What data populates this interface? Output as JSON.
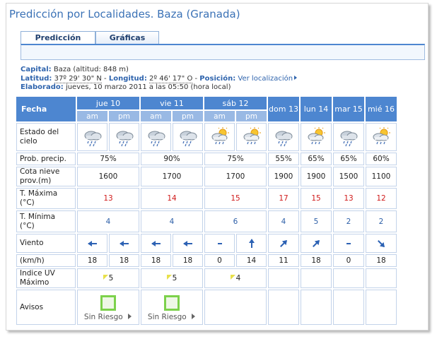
{
  "header": {
    "title": "Predicción por Localidades. Baza (Granada)"
  },
  "tabs": [
    "Predicción",
    "Gráficas"
  ],
  "info": {
    "capital_label": "Capital:",
    "capital": "Baza (altitud: 848 m)",
    "latitud_label": "Latitud:",
    "latitud": "37º 29' 30\" N",
    "separator": "-",
    "longitud_label": "Longitud:",
    "longitud": "2º 46' 17\" O",
    "posicion_label": "Posición:",
    "posicion_link": "Ver localización",
    "elaborado_label": "Elaborado:",
    "elaborado": "jueves, 10 marzo 2011 a las 05:50 (hora local)"
  },
  "table": {
    "fecha": "Fecha",
    "days": [
      "jue 10",
      "vie 11",
      "sáb 12",
      "dom 13",
      "lun 14",
      "mar 15",
      "mié 16"
    ],
    "periods": [
      "am",
      "pm",
      "am",
      "pm",
      "am",
      "pm"
    ],
    "sky_label": "Estado del\ncielo",
    "precip_label": "Prob. precip.",
    "precip": [
      "75%",
      "90%",
      "75%",
      "55%",
      "65%",
      "65%",
      "60%"
    ],
    "snow_label": "Cota nieve\nprov.(m)",
    "snow": [
      1600,
      1700,
      1700,
      1900,
      1900,
      1500,
      1100
    ],
    "tmax_label": "T. Máxima\n(°C)",
    "tmax": [
      13,
      14,
      15,
      17,
      15,
      13,
      12
    ],
    "tmin_label": "T. Mínima\n(°C)",
    "tmin": [
      4,
      4,
      6,
      4,
      5,
      2,
      2
    ],
    "wind_label": "Viento",
    "speed_label": "(km/h)",
    "speed": [
      18,
      18,
      18,
      18,
      0,
      14,
      11,
      18,
      0,
      18
    ],
    "uv_label": "Indice UV\nMáximo",
    "uv": [
      5,
      5,
      4
    ],
    "alerts_label": "Avisos",
    "alerts": [
      "Sin Riesgo",
      "Sin Riesgo"
    ]
  }
}
